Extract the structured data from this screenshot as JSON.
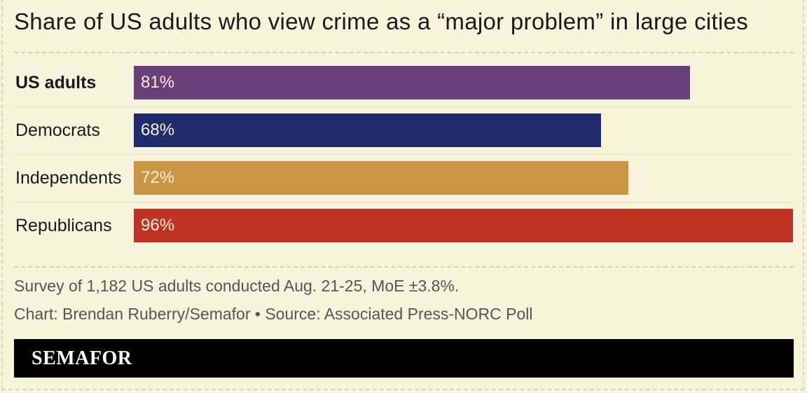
{
  "chart_data": {
    "type": "bar",
    "orientation": "horizontal",
    "title": "Share of US adults who view crime as a “major problem” in large cities",
    "categories": [
      "US adults",
      "Democrats",
      "Independents",
      "Republicans"
    ],
    "values": [
      81,
      68,
      72,
      96
    ],
    "value_labels": [
      "81%",
      "68%",
      "72%",
      "96%"
    ],
    "colors": [
      "#693f77",
      "#202c6b",
      "#ca9544",
      "#c03223"
    ],
    "xlim": [
      0,
      96
    ],
    "grid": false,
    "legend": "none"
  },
  "notes": {
    "survey": "Survey of 1,182 US adults conducted Aug. 21-25, MoE ±3.8%.",
    "credit": "Chart: Brendan Ruberry/Semafor • Source: Associated Press-NORC Poll"
  },
  "footer": {
    "brand": "SEMAFOR"
  }
}
